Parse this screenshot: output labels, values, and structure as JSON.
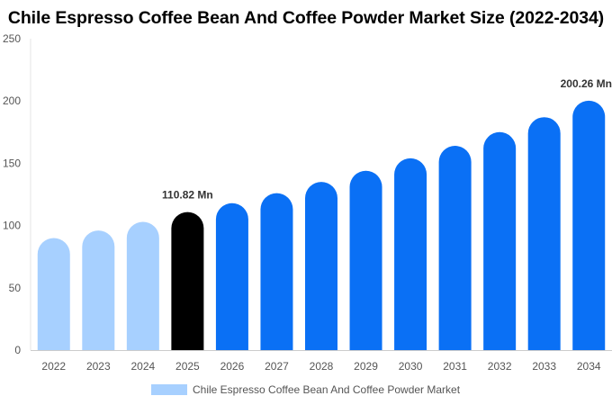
{
  "chart_data": {
    "type": "bar",
    "title": "Chile Espresso Coffee Bean And Coffee Powder Market Size (2022-2034)",
    "categories": [
      "2022",
      "2023",
      "2024",
      "2025",
      "2026",
      "2027",
      "2028",
      "2029",
      "2030",
      "2031",
      "2032",
      "2033",
      "2034"
    ],
    "series": [
      {
        "name": "Chile Espresso Coffee Bean And Coffee Powder Market",
        "values": [
          90,
          96,
          103,
          110.82,
          118,
          126,
          135,
          144,
          154,
          164,
          175,
          187,
          200.26
        ]
      }
    ],
    "ylim": [
      0,
      250
    ],
    "yticks": [
      0,
      50,
      100,
      150,
      200,
      250
    ],
    "data_labels": [
      {
        "category": "2025",
        "text": "110.82 Mn"
      },
      {
        "category": "2034",
        "text": "200.26 Mn"
      }
    ],
    "colors": {
      "historical": "#a7d0ff",
      "current": "#000000",
      "forecast": "#0a70f5"
    },
    "grid": false,
    "legend_position": "bottom"
  }
}
